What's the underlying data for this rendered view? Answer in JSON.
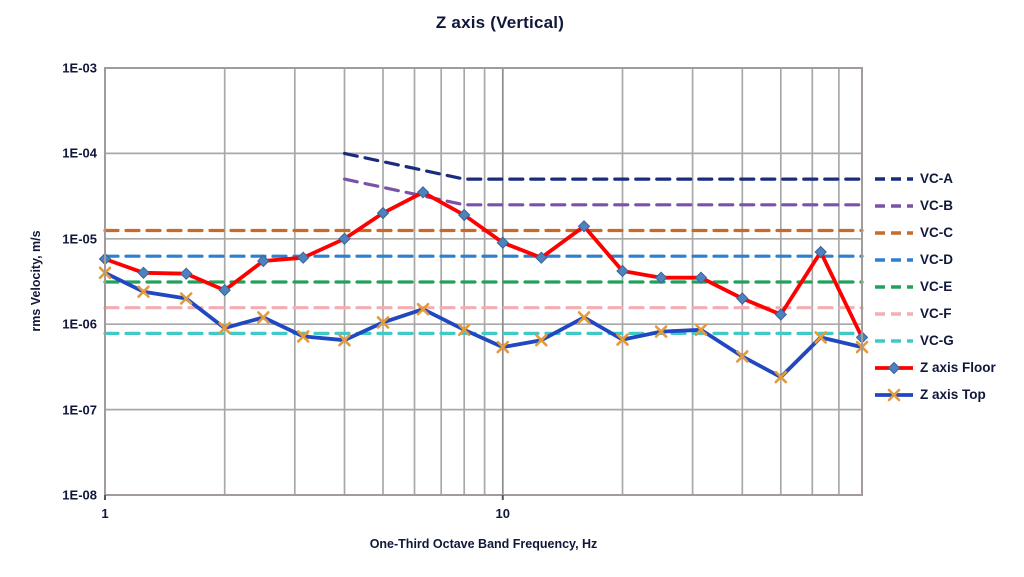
{
  "title": "Z axis (Vertical)",
  "chart_data": {
    "type": "line",
    "title": "Z axis (Vertical)",
    "xlabel": "One-Third Octave Band Frequency, Hz",
    "ylabel": "rms Velocity, m/s",
    "grid": true,
    "legend_position": "right",
    "x_axis": {
      "scale": "log",
      "range": [
        1,
        80
      ],
      "ticks": [
        {
          "value": 1,
          "label": "1"
        },
        {
          "value": 10,
          "label": "10"
        }
      ],
      "gridlines": [
        2,
        3,
        4,
        5,
        6,
        7,
        8,
        9,
        10,
        20,
        30,
        40,
        50,
        60,
        70,
        80
      ]
    },
    "y_axis": {
      "scale": "log",
      "range": [
        1e-08,
        0.001
      ],
      "ticks": [
        {
          "value": 0.001,
          "label": "1E-03"
        },
        {
          "value": 0.0001,
          "label": "1E-04"
        },
        {
          "value": 1e-05,
          "label": "1E-05"
        },
        {
          "value": 1e-06,
          "label": "1E-06"
        },
        {
          "value": 1e-07,
          "label": "1E-07"
        },
        {
          "value": 1e-08,
          "label": "1E-08"
        }
      ],
      "gridlines": [
        0.0001,
        1e-05,
        1e-06,
        1e-07
      ]
    },
    "x": [
      1,
      1.25,
      1.6,
      2,
      2.5,
      3.15,
      4,
      5,
      6.3,
      8,
      10,
      12.5,
      16,
      20,
      25,
      31.5,
      40,
      50,
      63,
      80
    ],
    "series": [
      {
        "name": "VC-A",
        "kind": "criterion",
        "style": "dashed",
        "color": "#1b2c7e",
        "points": [
          [
            4,
            0.0001
          ],
          [
            8,
            5e-05
          ],
          [
            80,
            5e-05
          ]
        ]
      },
      {
        "name": "VC-B",
        "kind": "criterion",
        "style": "dashed",
        "color": "#7a52a8",
        "points": [
          [
            4,
            5e-05
          ],
          [
            8,
            2.5e-05
          ],
          [
            80,
            2.5e-05
          ]
        ]
      },
      {
        "name": "VC-C",
        "kind": "criterion",
        "style": "dashed",
        "color": "#c96b28",
        "points": [
          [
            1,
            1.25e-05
          ],
          [
            80,
            1.25e-05
          ]
        ]
      },
      {
        "name": "VC-D",
        "kind": "criterion",
        "style": "dashed",
        "color": "#2e7fd0",
        "points": [
          [
            1,
            6.25e-06
          ],
          [
            80,
            6.25e-06
          ]
        ]
      },
      {
        "name": "VC-E",
        "kind": "criterion",
        "style": "dashed",
        "color": "#21a15c",
        "points": [
          [
            1,
            3.12e-06
          ],
          [
            80,
            3.12e-06
          ]
        ]
      },
      {
        "name": "VC-F",
        "kind": "criterion",
        "style": "dashed",
        "color": "#f2aeb2",
        "points": [
          [
            1,
            1.56e-06
          ],
          [
            80,
            1.56e-06
          ]
        ]
      },
      {
        "name": "VC-G",
        "kind": "criterion",
        "style": "dashed",
        "color": "#40c9c9",
        "points": [
          [
            1,
            7.8e-07
          ],
          [
            80,
            7.8e-07
          ]
        ]
      },
      {
        "name": "Z axis Floor",
        "kind": "data",
        "style": "solid",
        "color": "#ff0000",
        "marker": "diamond",
        "marker_color": "#4f81bd",
        "values": [
          5.8e-06,
          4e-06,
          3.9e-06,
          2.5e-06,
          5.5e-06,
          6e-06,
          1e-05,
          2e-05,
          3.5e-05,
          1.9e-05,
          9e-06,
          6e-06,
          1.4e-05,
          4.2e-06,
          3.5e-06,
          3.5e-06,
          2e-06,
          1.3e-06,
          7e-06,
          7e-07
        ]
      },
      {
        "name": "Z axis Top",
        "kind": "data",
        "style": "solid",
        "color": "#2148c0",
        "marker": "x",
        "marker_color": "#e39b3b",
        "values": [
          4e-06,
          2.4e-06,
          2e-06,
          9e-07,
          1.2e-06,
          7.2e-07,
          6.5e-07,
          1.05e-06,
          1.5e-06,
          8.6e-07,
          5.4e-07,
          6.5e-07,
          1.2e-06,
          6.6e-07,
          8.2e-07,
          8.6e-07,
          4.2e-07,
          2.4e-07,
          7e-07,
          5.4e-07
        ]
      }
    ],
    "colors": {
      "gridline": "#a8a8a8",
      "major_gridline": "#8c8c8c",
      "frame": "#a39a9a",
      "text": "#10173a"
    }
  }
}
